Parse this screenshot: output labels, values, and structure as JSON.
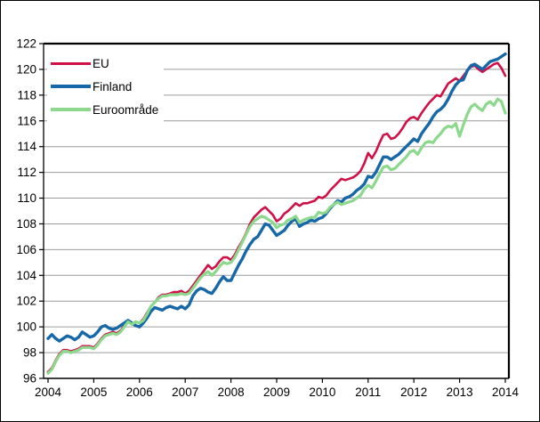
{
  "chart_data": {
    "type": "line",
    "title": "",
    "xlabel": "",
    "ylabel": "",
    "x_start_year": 2004,
    "points_per_year": 12,
    "x_tick_labels": [
      "2004",
      "2005",
      "2006",
      "2007",
      "2008",
      "2009",
      "2010",
      "2011",
      "2012",
      "2013",
      "2014"
    ],
    "y_ticks": [
      96,
      98,
      100,
      102,
      104,
      106,
      108,
      110,
      112,
      114,
      116,
      118,
      120,
      122
    ],
    "ylim": [
      96,
      122
    ],
    "grid": "horizontal",
    "grid_color": "#9c9c9c",
    "axis_color": "#000000",
    "legend_position": "top-left-inside",
    "series": [
      {
        "name": "EU",
        "color": "#d01047",
        "width": 2.6,
        "values": [
          96.5,
          96.8,
          97.4,
          97.9,
          98.2,
          98.2,
          98.1,
          98.2,
          98.3,
          98.5,
          98.5,
          98.5,
          98.4,
          98.7,
          99.1,
          99.4,
          99.5,
          99.6,
          99.5,
          99.7,
          100.1,
          100.4,
          100.2,
          100.4,
          100.3,
          100.6,
          101.1,
          101.6,
          101.9,
          102.3,
          102.5,
          102.5,
          102.6,
          102.7,
          102.7,
          102.8,
          102.6,
          102.8,
          103.2,
          103.6,
          104.0,
          104.4,
          104.8,
          104.5,
          104.7,
          105.1,
          105.4,
          105.4,
          105.2,
          105.6,
          106.2,
          106.7,
          107.3,
          108.0,
          108.5,
          108.8,
          109.1,
          109.3,
          109.0,
          108.7,
          108.2,
          108.4,
          108.8,
          109.0,
          109.3,
          109.6,
          109.4,
          109.6,
          109.6,
          109.7,
          109.8,
          110.1,
          110.0,
          110.2,
          110.6,
          110.9,
          111.2,
          111.5,
          111.4,
          111.5,
          111.6,
          111.8,
          112.1,
          112.7,
          113.5,
          113.1,
          113.6,
          114.3,
          114.9,
          115.0,
          114.6,
          114.7,
          115.0,
          115.4,
          115.9,
          116.2,
          116.3,
          116.1,
          116.6,
          117.0,
          117.4,
          117.7,
          118.0,
          117.9,
          118.4,
          118.9,
          119.1,
          119.3,
          119.1,
          119.5,
          119.9,
          120.2,
          120.3,
          120.0,
          119.8,
          120.0,
          120.2,
          120.4,
          120.5,
          120.1,
          119.5
        ]
      },
      {
        "name": "Finland",
        "color": "#1668a8",
        "width": 3.4,
        "values": [
          99.1,
          99.4,
          99.1,
          98.9,
          99.1,
          99.3,
          99.2,
          99.0,
          99.2,
          99.6,
          99.4,
          99.2,
          99.3,
          99.6,
          100.0,
          100.1,
          99.9,
          99.8,
          99.9,
          100.1,
          100.3,
          100.5,
          100.3,
          100.1,
          100.0,
          100.3,
          100.7,
          101.2,
          101.5,
          101.4,
          101.3,
          101.5,
          101.6,
          101.5,
          101.4,
          101.6,
          101.4,
          101.7,
          102.4,
          102.8,
          103.0,
          102.9,
          102.7,
          102.6,
          103.0,
          103.5,
          103.9,
          103.6,
          103.6,
          104.2,
          104.8,
          105.3,
          105.9,
          106.4,
          106.8,
          107.0,
          107.5,
          108.0,
          107.9,
          107.5,
          107.1,
          107.3,
          107.5,
          107.9,
          108.2,
          108.4,
          107.8,
          108.0,
          108.1,
          108.3,
          108.2,
          108.4,
          108.5,
          108.8,
          109.2,
          109.5,
          109.8,
          109.7,
          110.0,
          110.1,
          110.3,
          110.6,
          110.8,
          111.1,
          111.7,
          111.6,
          112.0,
          112.6,
          113.2,
          113.2,
          113.0,
          113.2,
          113.4,
          113.7,
          114.0,
          114.3,
          114.6,
          114.4,
          115.0,
          115.4,
          115.8,
          116.3,
          116.7,
          116.9,
          117.2,
          117.7,
          118.3,
          118.8,
          119.1,
          119.2,
          119.9,
          120.3,
          120.4,
          120.2,
          120.0,
          120.3,
          120.6,
          120.7,
          120.8,
          121.0,
          121.2
        ]
      },
      {
        "name": "Euroområde",
        "color": "#8cd88c",
        "width": 3.2,
        "values": [
          96.4,
          96.7,
          97.3,
          97.8,
          98.1,
          98.1,
          98.0,
          98.1,
          98.2,
          98.4,
          98.4,
          98.4,
          98.3,
          98.6,
          99.0,
          99.3,
          99.4,
          99.5,
          99.4,
          99.6,
          100.0,
          100.4,
          100.2,
          100.4,
          100.3,
          100.5,
          101.0,
          101.6,
          101.9,
          102.2,
          102.4,
          102.4,
          102.5,
          102.5,
          102.5,
          102.6,
          102.5,
          102.6,
          103.0,
          103.4,
          103.8,
          104.1,
          104.3,
          104.0,
          104.3,
          104.7,
          105.0,
          104.9,
          105.0,
          105.4,
          106.0,
          106.6,
          107.2,
          107.8,
          108.2,
          108.4,
          108.6,
          108.5,
          108.3,
          108.1,
          107.7,
          107.9,
          108.0,
          108.3,
          108.4,
          108.6,
          108.1,
          108.3,
          108.4,
          108.5,
          108.5,
          108.9,
          108.8,
          108.9,
          109.3,
          109.5,
          109.7,
          109.5,
          109.6,
          109.7,
          109.8,
          110.0,
          110.2,
          110.7,
          111.0,
          110.8,
          111.3,
          111.9,
          112.4,
          112.5,
          112.2,
          112.3,
          112.6,
          112.9,
          113.2,
          113.6,
          113.7,
          113.4,
          113.9,
          114.3,
          114.4,
          114.3,
          114.7,
          115.0,
          115.4,
          115.6,
          115.5,
          115.8,
          114.8,
          115.7,
          116.5,
          117.1,
          117.3,
          117.0,
          116.8,
          117.3,
          117.5,
          117.2,
          117.7,
          117.5,
          116.6
        ]
      }
    ]
  },
  "legend": {
    "items": [
      {
        "label": "EU"
      },
      {
        "label": "Finland"
      },
      {
        "label": "Euroområde"
      }
    ]
  }
}
